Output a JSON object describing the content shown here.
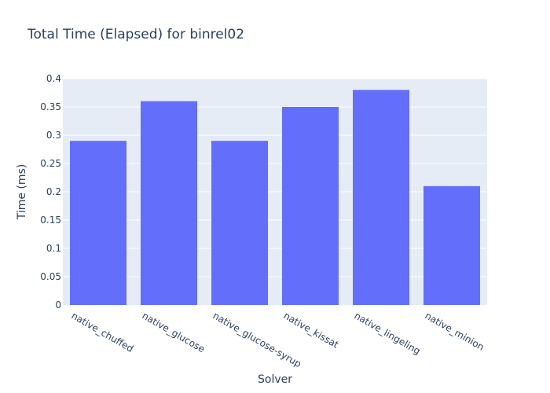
{
  "chart_data": {
    "type": "bar",
    "title": "Total Time (Elapsed) for binrel02",
    "xlabel": "Solver",
    "ylabel": "Time (ms)",
    "categories": [
      "native_chuffed",
      "native_glucose",
      "native_glucose-syrup",
      "native_kissat",
      "native_lingeling",
      "native_minion"
    ],
    "values": [
      0.29,
      0.36,
      0.29,
      0.35,
      0.38,
      0.21
    ],
    "ylim": [
      0,
      0.4
    ],
    "yticks": [
      "0",
      "0.05",
      "0.1",
      "0.15",
      "0.2",
      "0.25",
      "0.3",
      "0.35",
      "0.4"
    ],
    "grid": true,
    "colors": {
      "bar": "#636efa",
      "plot_bg": "#e5ecf6",
      "grid": "#ffffff",
      "text": "#2a3f5f"
    }
  }
}
